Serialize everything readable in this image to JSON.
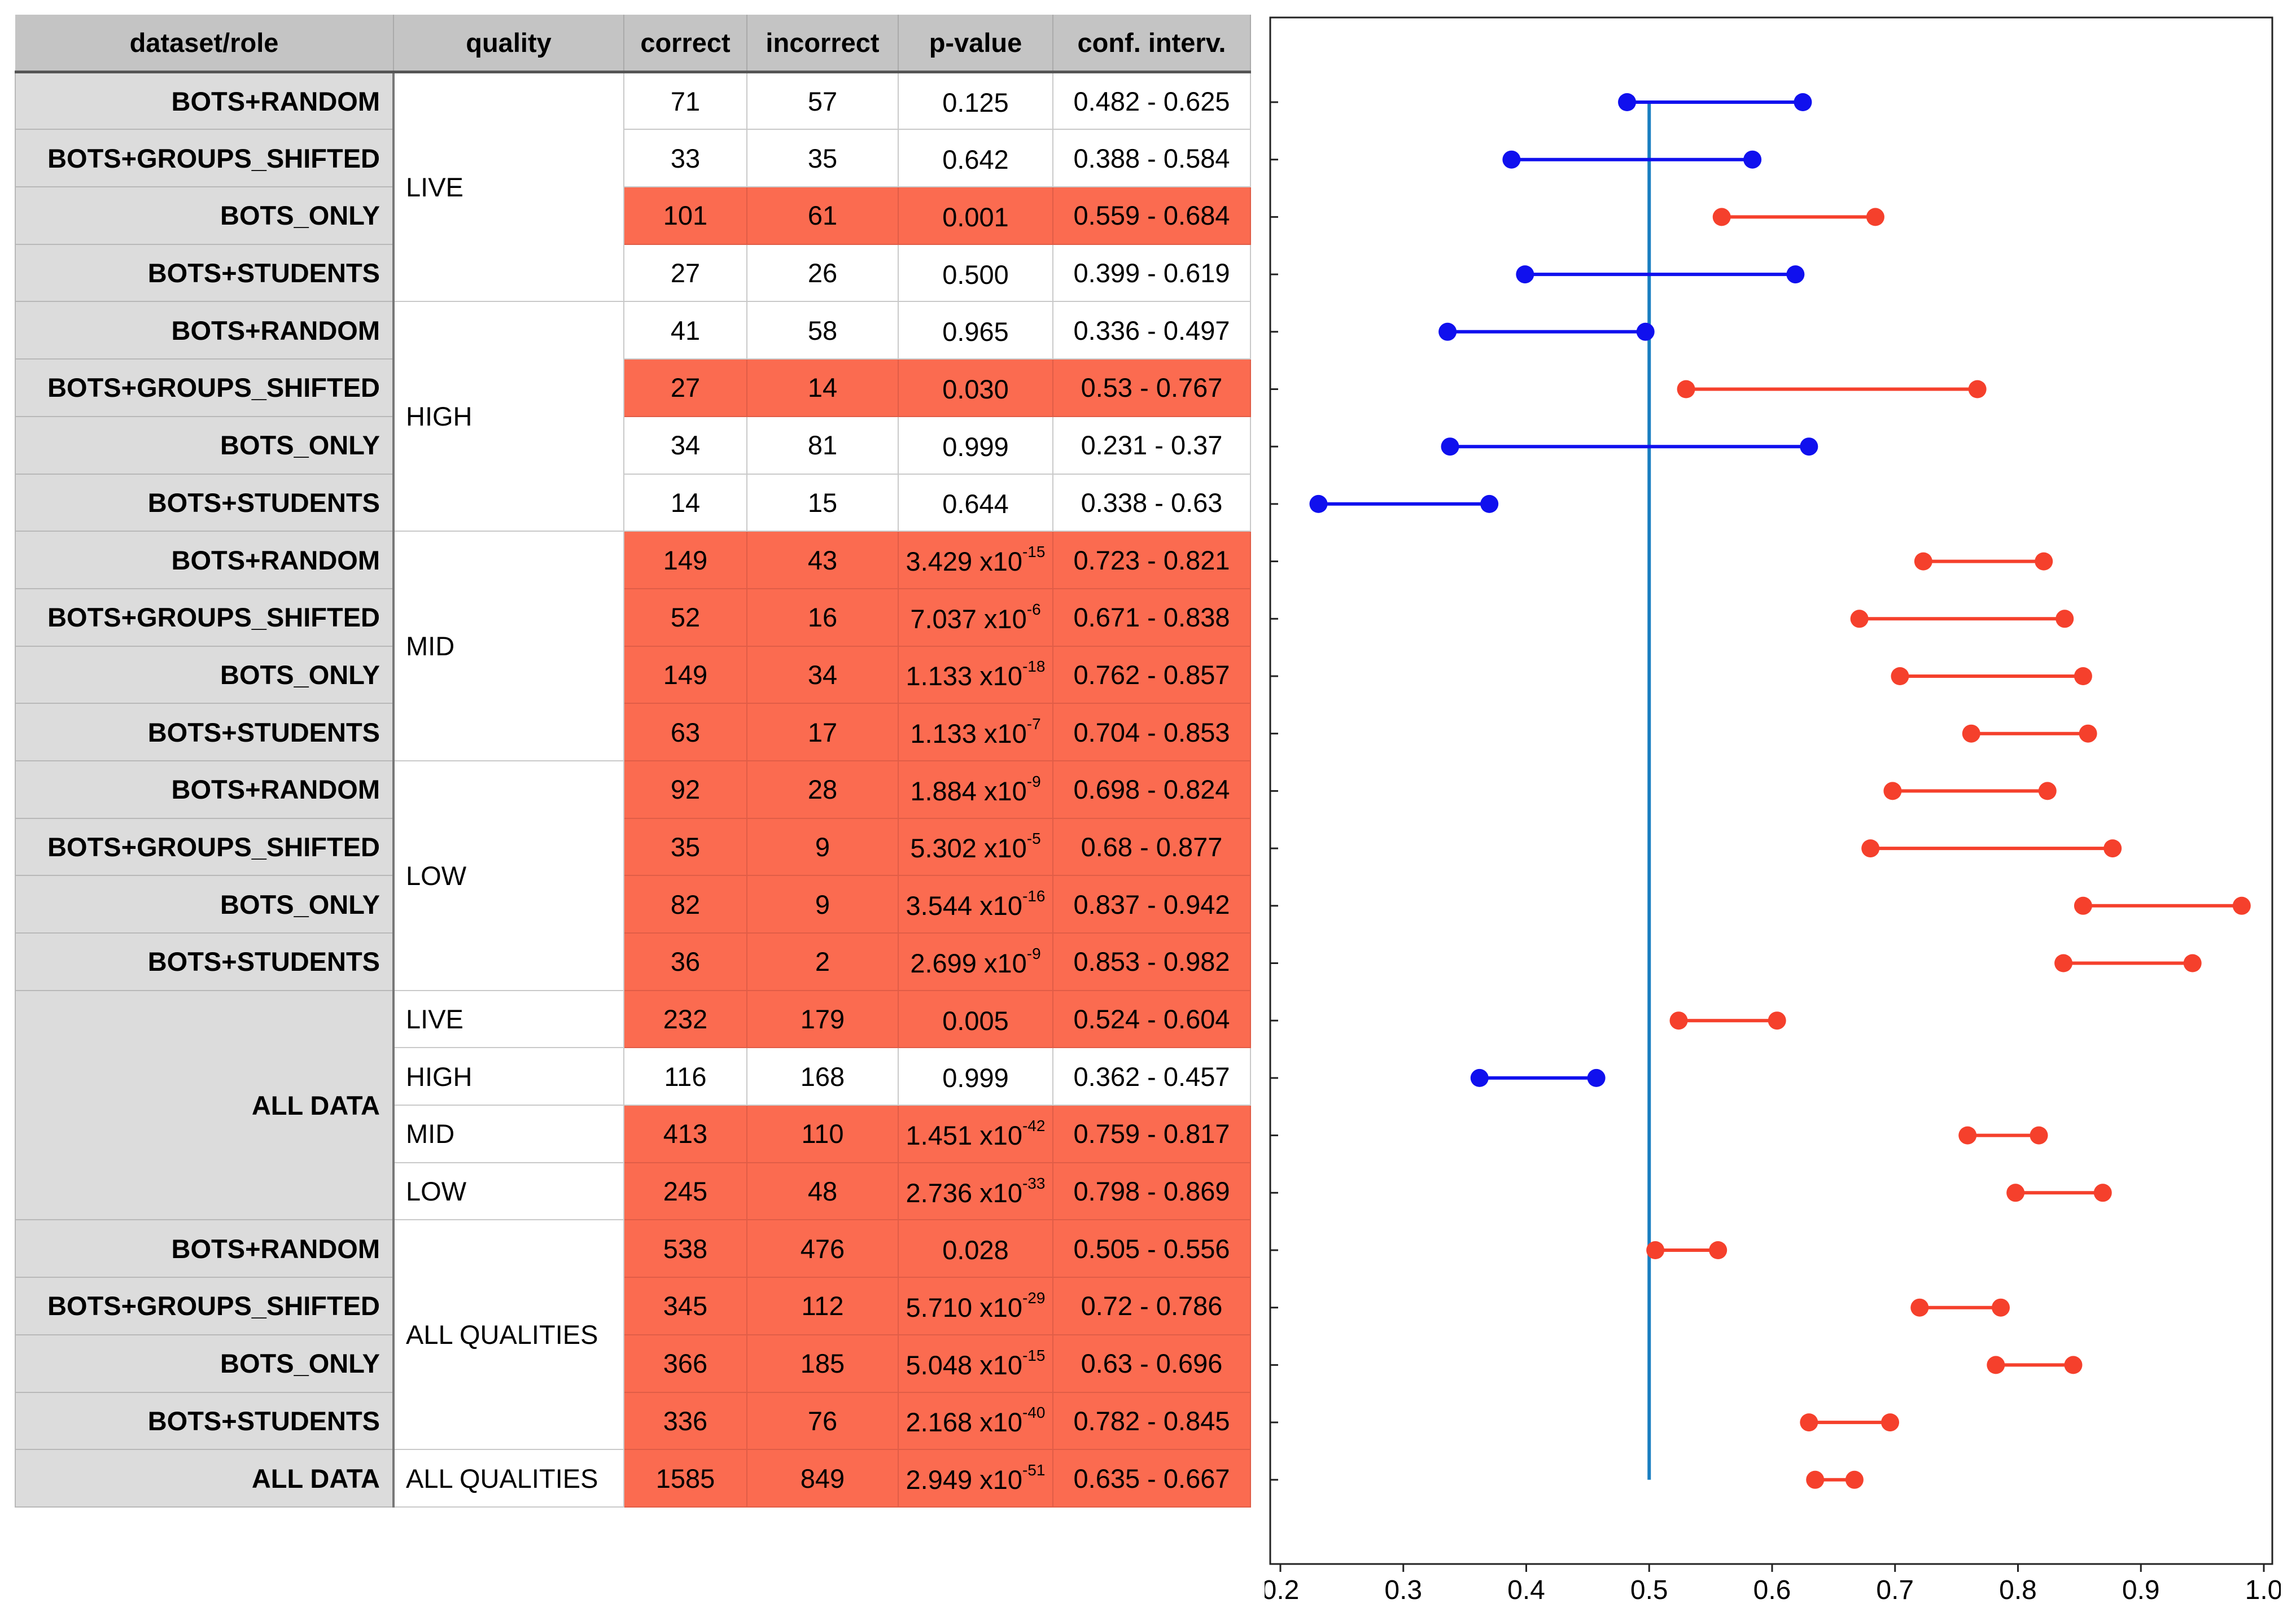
{
  "table": {
    "headers": [
      "dataset/role",
      "quality",
      "correct",
      "incorrect",
      "p-value",
      "conf. interv."
    ],
    "groups": [
      {
        "quality": "LIVE",
        "rows": [
          {
            "role": "BOTS+RANDOM",
            "correct": "71",
            "incorrect": "57",
            "p_mant": "0.125",
            "p_exp": "",
            "ci": "0.482 - 0.625",
            "highlight": false
          },
          {
            "role": "BOTS+GROUPS_SHIFTED",
            "correct": "33",
            "incorrect": "35",
            "p_mant": "0.642",
            "p_exp": "",
            "ci": "0.388 - 0.584",
            "highlight": false
          },
          {
            "role": "BOTS_ONLY",
            "correct": "101",
            "incorrect": "61",
            "p_mant": "0.001",
            "p_exp": "",
            "ci": "0.559 - 0.684",
            "highlight": true
          },
          {
            "role": "BOTS+STUDENTS",
            "correct": "27",
            "incorrect": "26",
            "p_mant": "0.500",
            "p_exp": "",
            "ci": "0.399 - 0.619",
            "highlight": false
          }
        ]
      },
      {
        "quality": "HIGH",
        "rows": [
          {
            "role": "BOTS+RANDOM",
            "correct": "41",
            "incorrect": "58",
            "p_mant": "0.965",
            "p_exp": "",
            "ci": "0.336 - 0.497",
            "highlight": false
          },
          {
            "role": "BOTS+GROUPS_SHIFTED",
            "correct": "27",
            "incorrect": "14",
            "p_mant": "0.030",
            "p_exp": "",
            "ci": "0.53 - 0.767",
            "highlight": true
          },
          {
            "role": "BOTS_ONLY",
            "correct": "34",
            "incorrect": "81",
            "p_mant": "0.999",
            "p_exp": "",
            "ci": "0.231 - 0.37",
            "highlight": false
          },
          {
            "role": "BOTS+STUDENTS",
            "correct": "14",
            "incorrect": "15",
            "p_mant": "0.644",
            "p_exp": "",
            "ci": "0.338 - 0.63",
            "highlight": false
          }
        ]
      },
      {
        "quality": "MID",
        "rows": [
          {
            "role": "BOTS+RANDOM",
            "correct": "149",
            "incorrect": "43",
            "p_mant": "3.429 x10",
            "p_exp": "-15",
            "ci": "0.723 - 0.821",
            "highlight": true
          },
          {
            "role": "BOTS+GROUPS_SHIFTED",
            "correct": "52",
            "incorrect": "16",
            "p_mant": "7.037 x10",
            "p_exp": "-6",
            "ci": "0.671 - 0.838",
            "highlight": true
          },
          {
            "role": "BOTS_ONLY",
            "correct": "149",
            "incorrect": "34",
            "p_mant": "1.133 x10",
            "p_exp": "-18",
            "ci": "0.762 - 0.857",
            "highlight": true
          },
          {
            "role": "BOTS+STUDENTS",
            "correct": "63",
            "incorrect": "17",
            "p_mant": "1.133 x10",
            "p_exp": "-7",
            "ci": "0.704 - 0.853",
            "highlight": true
          }
        ]
      },
      {
        "quality": "LOW",
        "rows": [
          {
            "role": "BOTS+RANDOM",
            "correct": "92",
            "incorrect": "28",
            "p_mant": "1.884 x10",
            "p_exp": "-9",
            "ci": "0.698 - 0.824",
            "highlight": true
          },
          {
            "role": "BOTS+GROUPS_SHIFTED",
            "correct": "35",
            "incorrect": "9",
            "p_mant": "5.302 x10",
            "p_exp": "-5",
            "ci": "0.68 - 0.877",
            "highlight": true
          },
          {
            "role": "BOTS_ONLY",
            "correct": "82",
            "incorrect": "9",
            "p_mant": "3.544 x10",
            "p_exp": "-16",
            "ci": "0.837 - 0.942",
            "highlight": true
          },
          {
            "role": "BOTS+STUDENTS",
            "correct": "36",
            "incorrect": "2",
            "p_mant": "2.699 x10",
            "p_exp": "-9",
            "ci": "0.853 - 0.982",
            "highlight": true
          }
        ]
      }
    ],
    "all_data_block": {
      "role": "ALL DATA",
      "rows": [
        {
          "quality": "LIVE",
          "correct": "232",
          "incorrect": "179",
          "p_mant": "0.005",
          "p_exp": "",
          "ci": "0.524 - 0.604",
          "highlight": true
        },
        {
          "quality": "HIGH",
          "correct": "116",
          "incorrect": "168",
          "p_mant": "0.999",
          "p_exp": "",
          "ci": "0.362 - 0.457",
          "highlight": false
        },
        {
          "quality": "MID",
          "correct": "413",
          "incorrect": "110",
          "p_mant": "1.451 x10",
          "p_exp": "-42",
          "ci": "0.759 - 0.817",
          "highlight": true
        },
        {
          "quality": "LOW",
          "correct": "245",
          "incorrect": "48",
          "p_mant": "2.736 x10",
          "p_exp": "-33",
          "ci": "0.798 - 0.869",
          "highlight": true
        }
      ]
    },
    "all_qualities_block": {
      "quality": "ALL QUALITIES",
      "rows": [
        {
          "role": "BOTS+RANDOM",
          "correct": "538",
          "incorrect": "476",
          "p_mant": "0.028",
          "p_exp": "",
          "ci": "0.505 - 0.556",
          "highlight": true
        },
        {
          "role": "BOTS+GROUPS_SHIFTED",
          "correct": "345",
          "incorrect": "112",
          "p_mant": "5.710 x10",
          "p_exp": "-29",
          "ci": "0.72 - 0.786",
          "highlight": true
        },
        {
          "role": "BOTS_ONLY",
          "correct": "366",
          "incorrect": "185",
          "p_mant": "5.048 x10",
          "p_exp": "-15",
          "ci": "0.63 - 0.696",
          "highlight": true
        },
        {
          "role": "BOTS+STUDENTS",
          "correct": "336",
          "incorrect": "76",
          "p_mant": "2.168 x10",
          "p_exp": "-40",
          "ci": "0.782 - 0.845",
          "highlight": true
        }
      ]
    },
    "total_row": {
      "role": "ALL DATA",
      "quality": "ALL QUALITIES",
      "correct": "1585",
      "incorrect": "849",
      "p_mant": "2.949 x10",
      "p_exp": "-51",
      "ci": "0.635 - 0.667",
      "highlight": true
    }
  },
  "chart_data": {
    "type": "scatter",
    "title": "",
    "xlabel": "",
    "ylabel": "",
    "xlim": [
      0.2,
      1.0
    ],
    "xticks": [
      "0.2",
      "0.3",
      "0.4",
      "0.5",
      "0.6",
      "0.7",
      "0.8",
      "0.9",
      "1.0"
    ],
    "reference_line_x": 0.5,
    "grid": false,
    "colors": {
      "significant": "#f5402c",
      "not_significant": "#1010ee",
      "reference": "#1a7fc1"
    },
    "intervals": [
      {
        "low": 0.482,
        "high": 0.625,
        "significant": false
      },
      {
        "low": 0.388,
        "high": 0.584,
        "significant": false
      },
      {
        "low": 0.559,
        "high": 0.684,
        "significant": true
      },
      {
        "low": 0.399,
        "high": 0.619,
        "significant": false
      },
      {
        "low": 0.336,
        "high": 0.497,
        "significant": false
      },
      {
        "low": 0.53,
        "high": 0.767,
        "significant": true
      },
      {
        "low": 0.338,
        "high": 0.63,
        "significant": false
      },
      {
        "low": 0.231,
        "high": 0.37,
        "significant": false
      },
      {
        "low": 0.723,
        "high": 0.821,
        "significant": true
      },
      {
        "low": 0.671,
        "high": 0.838,
        "significant": true
      },
      {
        "low": 0.704,
        "high": 0.853,
        "significant": true
      },
      {
        "low": 0.762,
        "high": 0.857,
        "significant": true
      },
      {
        "low": 0.698,
        "high": 0.824,
        "significant": true
      },
      {
        "low": 0.68,
        "high": 0.877,
        "significant": true
      },
      {
        "low": 0.853,
        "high": 0.982,
        "significant": true
      },
      {
        "low": 0.837,
        "high": 0.942,
        "significant": true
      },
      {
        "low": 0.524,
        "high": 0.604,
        "significant": true
      },
      {
        "low": 0.362,
        "high": 0.457,
        "significant": false
      },
      {
        "low": 0.759,
        "high": 0.817,
        "significant": true
      },
      {
        "low": 0.798,
        "high": 0.869,
        "significant": true
      },
      {
        "low": 0.505,
        "high": 0.556,
        "significant": true
      },
      {
        "low": 0.72,
        "high": 0.786,
        "significant": true
      },
      {
        "low": 0.782,
        "high": 0.845,
        "significant": true
      },
      {
        "low": 0.63,
        "high": 0.696,
        "significant": true
      },
      {
        "low": 0.635,
        "high": 0.667,
        "significant": true
      }
    ]
  }
}
